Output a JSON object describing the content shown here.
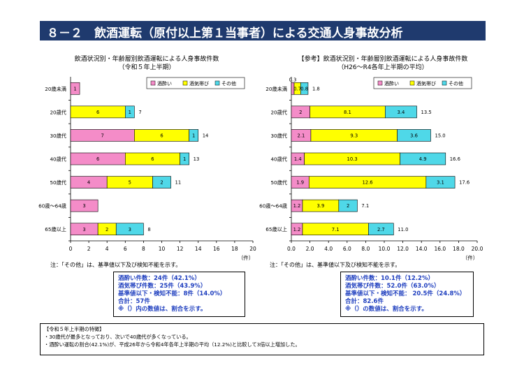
{
  "header": {
    "title": "８－２　飲酒運転（原付以上第１当事者）による交通人身事故分析"
  },
  "colors": {
    "drunk": "#f48cc8",
    "under_influence": "#ffff00",
    "other": "#4fd8e8",
    "header_bg": "#1f3a6e"
  },
  "chart_data": [
    {
      "type": "bar",
      "orientation": "horizontal-stacked",
      "title": "飲酒状況別・年齢層別飲酒運転による人身事故件数",
      "subtitle": "（令和５年上半期）",
      "categories": [
        "20歳未満",
        "20歳代",
        "30歳代",
        "40歳代",
        "50歳代",
        "60歳～64歳",
        "65歳以上"
      ],
      "series": [
        {
          "name": "酒酔い",
          "values": [
            1,
            0,
            7,
            6,
            4,
            3,
            3
          ]
        },
        {
          "name": "酒気帯び",
          "values": [
            0,
            6,
            6,
            6,
            5,
            0,
            2
          ]
        },
        {
          "name": "その他",
          "values": [
            0,
            1,
            1,
            1,
            2,
            0,
            3
          ]
        }
      ],
      "totals": [
        "",
        "7",
        "14",
        "13",
        "11",
        "",
        "8"
      ],
      "xlim": [
        0,
        20
      ],
      "xticks": [
        "0",
        "2",
        "4",
        "6",
        "8",
        "10",
        "12",
        "14",
        "16",
        "18",
        "20"
      ],
      "xlabel": "（件）",
      "legend": "top-right"
    },
    {
      "type": "bar",
      "orientation": "horizontal-stacked",
      "title": "【参考】飲酒状況別・年齢層別飲酒運転による人身事故件数",
      "subtitle": "（H26～R4各年上半期の平均）",
      "categories": [
        "20歳未満",
        "20歳代",
        "30歳代",
        "40歳代",
        "50歳代",
        "60歳～64歳",
        "65歳以上"
      ],
      "series": [
        {
          "name": "酒酔い",
          "values": [
            0.3,
            2.0,
            2.1,
            1.4,
            1.9,
            1.2,
            1.2
          ]
        },
        {
          "name": "酒気帯び",
          "values": [
            0.7,
            8.1,
            9.3,
            10.3,
            12.6,
            3.9,
            7.1
          ]
        },
        {
          "name": "その他",
          "values": [
            0.8,
            3.4,
            3.6,
            4.9,
            3.1,
            2.0,
            2.7
          ]
        }
      ],
      "totals": [
        "1.8",
        "13.5",
        "15.0",
        "16.6",
        "17.6",
        "7.1",
        "11.0"
      ],
      "xlim": [
        0,
        20
      ],
      "xticks": [
        "0.0",
        "2.0",
        "4.0",
        "6.0",
        "8.0",
        "10.0",
        "12.0",
        "14.0",
        "16.0",
        "18.0",
        "20.0"
      ],
      "xlabel": "（件）",
      "legend": "top-right"
    }
  ],
  "notes": {
    "left": "注：「その他」は、基準値以下及び検知不能を示す。",
    "right": "注：「その他」は、基準値以下及び検知不能を示す。"
  },
  "summary_left": [
    "酒酔い件数：24件（42.1%）",
    "酒気帯び件数：25件（43.9%）",
    "基準値以下・検知不能：8件（14.0%）",
    "合計：57件",
    "※（）内の数値は、割合を示す。"
  ],
  "summary_right": [
    "酒酔い件数：10.1件（12.2%）",
    "酒気帯び件数：52.0件（63.0%）",
    "基準値以下・検知不能： 20.5件（24.8%）",
    "合計：82.6件",
    "※（）の数値は、割合を示す。"
  ],
  "features": {
    "heading": "【令和５年上半期の特徴】",
    "lines": [
      "・30歳代が最多となっており、次いで40歳代が多くなっている。",
      "・酒酔い運転の割合(42.1%)が、平成26年から令和4年各年上半期の平均（12.2%)と比較して3倍以上増加した。"
    ]
  }
}
